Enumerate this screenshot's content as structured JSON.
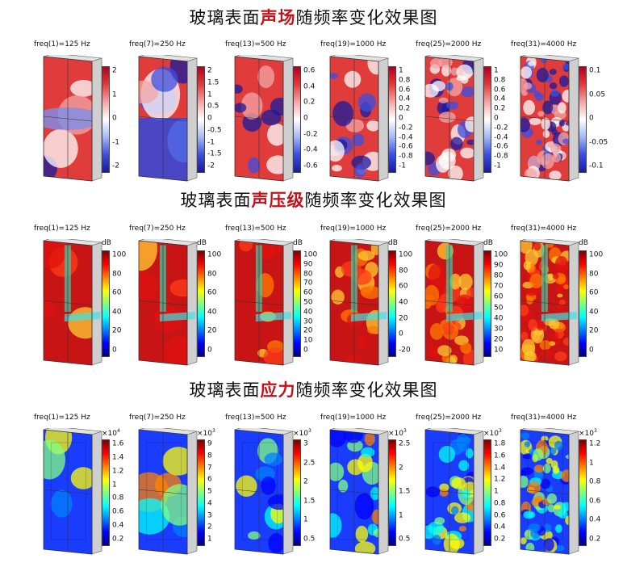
{
  "titles": [
    {
      "pre": "玻璃表面",
      "hl": "声场",
      "post": "随频率变化效果图"
    },
    {
      "pre": "玻璃表面",
      "hl": "声压级",
      "post": "随频率变化效果图"
    },
    {
      "pre": "玻璃表面",
      "hl": "应力",
      "post": "随频率变化效果图"
    }
  ],
  "freqs": [
    "freq(1)=125 Hz",
    "freq(7)=250 Hz",
    "freq(13)=500 Hz",
    "freq(19)=1000 Hz",
    "freq(25)=2000 Hz",
    "freq(31)=4000 Hz"
  ],
  "rows": [
    {
      "unit": "",
      "colormap": "rdbu",
      "panels": [
        {
          "ticks": [
            "2",
            "1",
            "0",
            "-1",
            "-2"
          ],
          "unit": ""
        },
        {
          "ticks": [
            "2",
            "1.5",
            "1",
            "0.5",
            "0",
            "-0.5",
            "-1",
            "-1.5",
            "-2"
          ],
          "unit": ""
        },
        {
          "ticks": [
            "0.6",
            "0.4",
            "0.2",
            "0",
            "-0.2",
            "-0.4",
            "-0.6"
          ],
          "unit": ""
        },
        {
          "ticks": [
            "1",
            "0.8",
            "0.6",
            "0.4",
            "0.2",
            "0",
            "-0.2",
            "-0.4",
            "-0.6",
            "-0.8",
            "-1"
          ],
          "unit": ""
        },
        {
          "ticks": [
            "1",
            "0.8",
            "0.6",
            "0.4",
            "0.2",
            "0",
            "-0.2",
            "-0.4",
            "-0.6",
            "-0.8",
            "-1"
          ],
          "unit": ""
        },
        {
          "ticks": [
            "0.1",
            "0.05",
            "0",
            "-0.05",
            "-0.1"
          ],
          "unit": ""
        }
      ]
    },
    {
      "colormap": "jet",
      "panels": [
        {
          "ticks": [
            "100",
            "80",
            "60",
            "40",
            "20",
            "0"
          ],
          "unit": "dB"
        },
        {
          "ticks": [
            "100",
            "80",
            "60",
            "40",
            "20",
            "0"
          ],
          "unit": "dB"
        },
        {
          "ticks": [
            "100",
            "90",
            "80",
            "70",
            "60",
            "50",
            "40",
            "30",
            "20",
            "10",
            "0"
          ],
          "unit": "dB"
        },
        {
          "ticks": [
            "100",
            "80",
            "60",
            "40",
            "20",
            "0",
            "-20"
          ],
          "unit": "dB"
        },
        {
          "ticks": [
            "100",
            "90",
            "80",
            "70",
            "60",
            "50",
            "40",
            "30",
            "20",
            "10"
          ],
          "unit": "dB"
        },
        {
          "ticks": [
            "100",
            "80",
            "60",
            "40",
            "20",
            "0"
          ],
          "unit": "dB"
        }
      ]
    },
    {
      "colormap": "jet",
      "panels": [
        {
          "ticks": [
            "1.6",
            "1.4",
            "1.2",
            "1",
            "0.8",
            "0.6",
            "0.4",
            "0.2"
          ],
          "unit": "×10",
          "exp": "4"
        },
        {
          "ticks": [
            "9",
            "8",
            "7",
            "6",
            "5",
            "4",
            "3",
            "2",
            "1"
          ],
          "unit": "×10",
          "exp": "3"
        },
        {
          "ticks": [
            "3",
            "2.5",
            "2",
            "1.5",
            "1",
            "0.5"
          ],
          "unit": "×10",
          "exp": "3"
        },
        {
          "ticks": [
            "2.5",
            "2",
            "1.5",
            "1",
            "0.5"
          ],
          "unit": "×10",
          "exp": "3"
        },
        {
          "ticks": [
            "1.8",
            "1.6",
            "1.4",
            "1.2",
            "1",
            "0.8",
            "0.6",
            "0.4",
            "0.2"
          ],
          "unit": "×10",
          "exp": "3"
        },
        {
          "ticks": [
            "1.2",
            "1",
            "0.8",
            "0.6",
            "0.4",
            "0.2"
          ],
          "unit": "×10",
          "exp": "3"
        }
      ]
    }
  ]
}
